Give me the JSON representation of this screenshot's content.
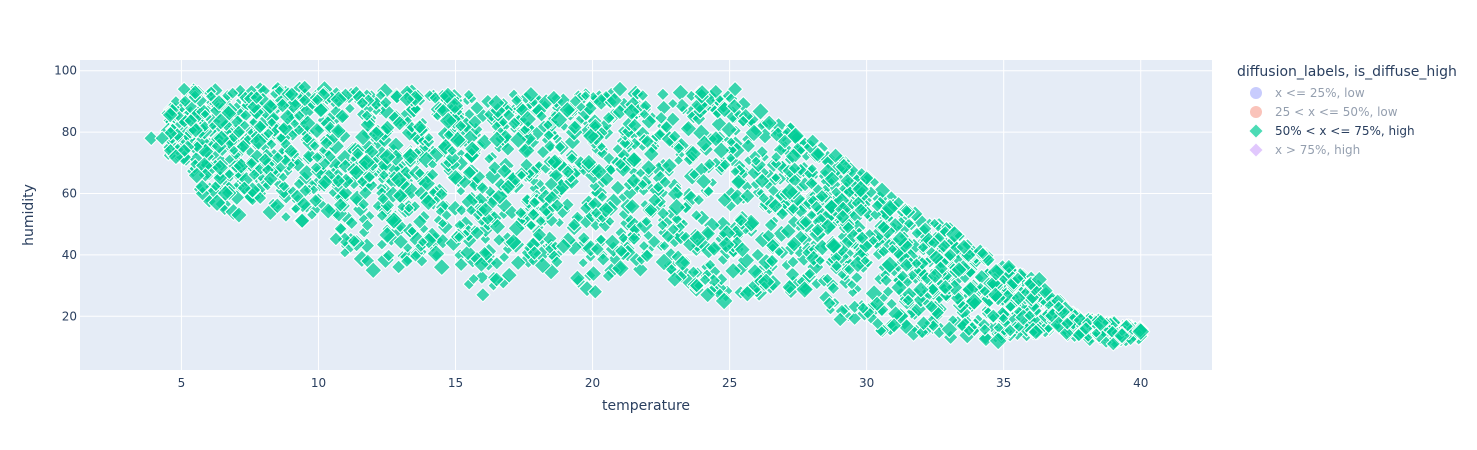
{
  "chart_data": {
    "type": "scatter",
    "title": "",
    "xlabel": "temperature",
    "ylabel": "humidity",
    "xlim": [
      1.3,
      42.6
    ],
    "ylim": [
      2.5,
      103.5
    ],
    "x_ticks": [
      5,
      10,
      15,
      20,
      25,
      30,
      35,
      40
    ],
    "y_ticks": [
      20,
      40,
      60,
      80,
      100
    ],
    "grid": true,
    "legend_position": "right",
    "legend": {
      "title": "diffusion_labels, is_diffuse_high",
      "entries": [
        {
          "label": "x <= 25%, low",
          "color": "#636EFA",
          "symbol": "circle",
          "visible": false
        },
        {
          "label": "25 < x <= 50%, low",
          "color": "#EF553B",
          "symbol": "circle",
          "visible": false
        },
        {
          "label": "50% < x <= 75%, high",
          "color": "#00CC96",
          "symbol": "diamond",
          "visible": true
        },
        {
          "label": "x > 75%, high",
          "color": "#AB63FA",
          "symbol": "diamond",
          "visible": false
        }
      ]
    },
    "series": [
      {
        "name": "50% < x <= 75%, high",
        "color": "#00CC96",
        "symbol": "diamond",
        "opacity": 0.75,
        "envelope": {
          "temperature": [
            4,
            5,
            6,
            7,
            8,
            10,
            12,
            14,
            16,
            18,
            20,
            22,
            24,
            25,
            26,
            27,
            28,
            29,
            30,
            31,
            32,
            33,
            34,
            35,
            36,
            37,
            38,
            39,
            40
          ],
          "humidity_min": [
            72,
            72,
            56,
            53,
            55,
            45,
            35,
            36,
            27,
            35,
            28,
            36,
            25,
            25,
            27,
            28,
            22,
            19,
            16,
            14,
            13,
            12,
            12,
            12,
            14,
            15,
            13,
            11,
            13
          ],
          "humidity_max": [
            79,
            94,
            94,
            94,
            95,
            95,
            94,
            93,
            93,
            93,
            93,
            93,
            93,
            94,
            88,
            83,
            78,
            72,
            66,
            60,
            52,
            49,
            42,
            37,
            33,
            25,
            19,
            18,
            16
          ]
        },
        "sample_points": [
          {
            "x": 3.9,
            "y": 78
          },
          {
            "x": 4.3,
            "y": 78
          },
          {
            "x": 4.6,
            "y": 74
          },
          {
            "x": 5.1,
            "y": 74
          },
          {
            "x": 4.8,
            "y": 72
          },
          {
            "x": 5.1,
            "y": 94
          },
          {
            "x": 6.3,
            "y": 57
          },
          {
            "x": 6.9,
            "y": 54
          },
          {
            "x": 7.1,
            "y": 53
          },
          {
            "x": 8.5,
            "y": 56
          },
          {
            "x": 11.8,
            "y": 38
          },
          {
            "x": 12.0,
            "y": 35
          },
          {
            "x": 14.5,
            "y": 36
          },
          {
            "x": 16.0,
            "y": 27
          },
          {
            "x": 16.5,
            "y": 32
          },
          {
            "x": 19.8,
            "y": 29
          },
          {
            "x": 20.1,
            "y": 28
          },
          {
            "x": 23.0,
            "y": 32
          },
          {
            "x": 23.8,
            "y": 30
          },
          {
            "x": 24.2,
            "y": 27
          },
          {
            "x": 24.8,
            "y": 25
          },
          {
            "x": 21.0,
            "y": 94
          },
          {
            "x": 24.0,
            "y": 93
          },
          {
            "x": 25.2,
            "y": 94
          },
          {
            "x": 30.0,
            "y": 65
          },
          {
            "x": 31.0,
            "y": 17
          },
          {
            "x": 34.8,
            "y": 12
          },
          {
            "x": 36.3,
            "y": 32
          },
          {
            "x": 38.0,
            "y": 16
          },
          {
            "x": 39.0,
            "y": 11
          },
          {
            "x": 40.0,
            "y": 15
          }
        ]
      }
    ]
  }
}
